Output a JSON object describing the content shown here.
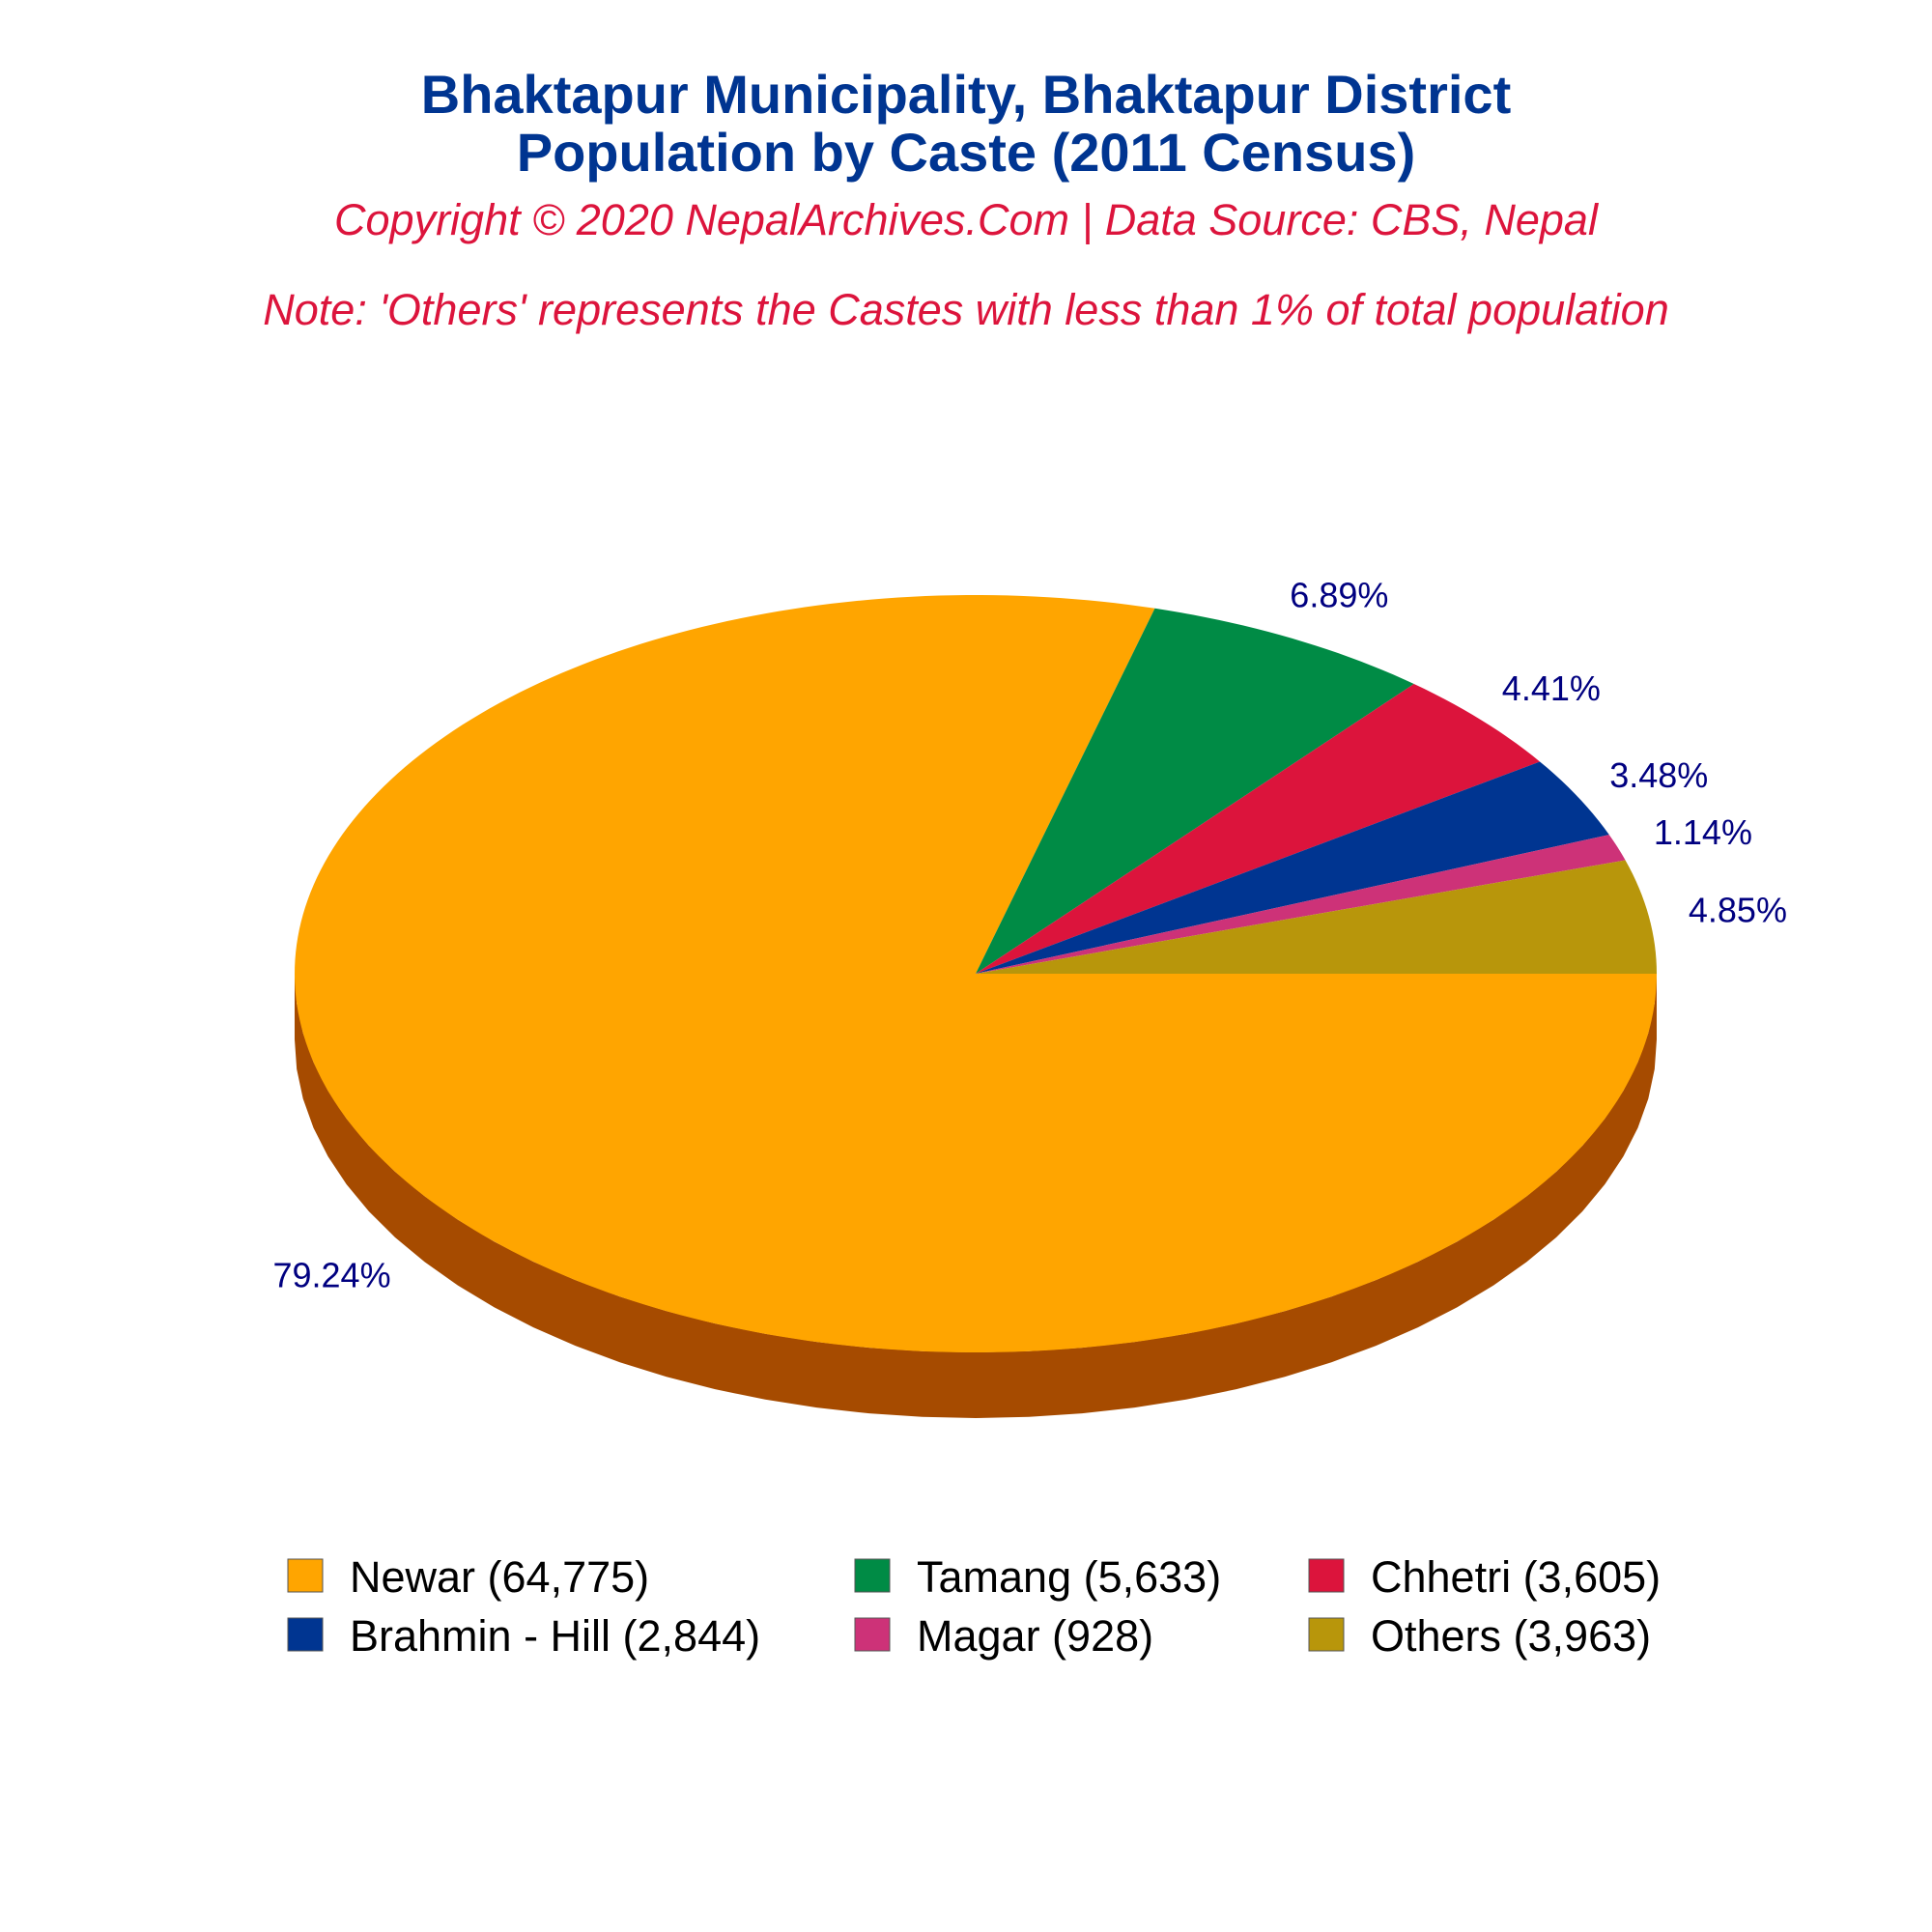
{
  "chart_data": {
    "type": "pie",
    "title": "Bhaktapur Municipality, Bhaktapur District",
    "subtitle": "Population by Caste (2011 Census)",
    "copyright": "Copyright © 2020 NepalArchives.Com | Data Source: CBS, Nepal",
    "note": "Note: 'Others' represents the Castes with less than 1% of total population",
    "slices": [
      {
        "legend": "Newar (64,775)",
        "value": 64775,
        "label": "79.24%",
        "color": "#ffa500",
        "side": "#a64b00"
      },
      {
        "legend": "Tamang (5,633)",
        "value": 5633,
        "label": "6.89%",
        "color": "#008b45",
        "side": "#002e00"
      },
      {
        "legend": "Chhetri (3,605)",
        "value": 3605,
        "label": "4.41%",
        "color": "#dc143c",
        "side": "#7a0000"
      },
      {
        "legend": "Brahmin - Hill (2,844)",
        "value": 2844,
        "label": "3.48%",
        "color": "#003591",
        "side": "#001f55"
      },
      {
        "legend": "Magar (928)",
        "value": 928,
        "label": "1.14%",
        "color": "#cd3278",
        "side": "#7a1e48"
      },
      {
        "legend": "Others (3,963)",
        "value": 3963,
        "label": "4.85%",
        "color": "#b8960b",
        "side": "#6b5706"
      }
    ],
    "legend_order": [
      0,
      1,
      2,
      3,
      4,
      5
    ],
    "legend_position": "bottom"
  }
}
